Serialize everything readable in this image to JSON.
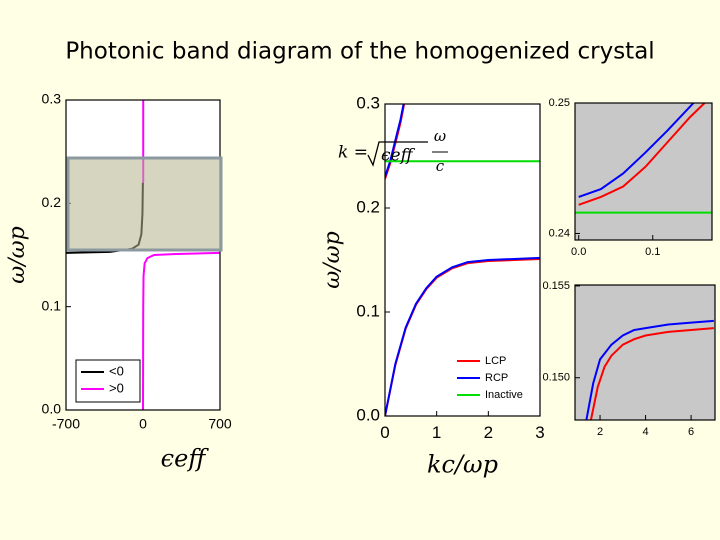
{
  "page_title": "Photonic band diagram of the homogenized crystal",
  "chart_data": [
    {
      "type": "line",
      "xlabel": "ϵeff",
      "ylabel": "ω/ωp",
      "xlim": [
        -700,
        700
      ],
      "xticks": [
        -700,
        0,
        700
      ],
      "ylim": [
        0,
        0.3
      ],
      "yticks": [
        {
          "value": 0,
          "label": "0.0"
        },
        0.1,
        0.2,
        0.3
      ],
      "legend": "lower left",
      "series": [
        {
          "name": "<0",
          "color": "#000000",
          "x": [
            -700,
            -300,
            -100,
            -40,
            -15,
            -5,
            -1
          ],
          "values": [
            0.152,
            0.153,
            0.156,
            0.16,
            0.17,
            0.19,
            0.22
          ]
        },
        {
          "name": ">0",
          "color": "#ff00ff",
          "x": [
            0,
            2,
            5,
            15,
            40,
            100,
            300,
            700,
            null,
            2,
            2
          ],
          "values": [
            0,
            0.1,
            0.13,
            0.142,
            0.147,
            0.15,
            0.151,
            0.152,
            null,
            0.22,
            0.3
          ]
        }
      ]
    },
    {
      "type": "line",
      "xlabel": "kc/ωp",
      "ylabel": "ω/ωp",
      "xlim": [
        0,
        3
      ],
      "xticks": [
        0,
        1,
        2,
        3
      ],
      "ylim": [
        0,
        0.3
      ],
      "yticks": [
        {
          "value": 0,
          "label": "0.0"
        },
        0.1,
        0.2,
        0.3
      ],
      "legend": "lower right",
      "annotation": {
        "lhs": "k =",
        "radicand": "ϵeff",
        "numerator": "ω",
        "denominator": "c"
      },
      "series": [
        {
          "name": "LCP",
          "color": "#ff0000",
          "x": [
            0,
            0.2,
            0.4,
            0.6,
            0.8,
            1,
            1.3,
            1.6,
            2,
            2.5,
            3,
            null,
            0,
            0.1,
            0.2,
            0.3,
            0.37
          ],
          "values": [
            0,
            0.049,
            0.084,
            0.107,
            0.122,
            0.133,
            0.142,
            0.147,
            0.149,
            0.15,
            0.151,
            null,
            0.228,
            0.243,
            0.262,
            0.282,
            0.3
          ]
        },
        {
          "name": "RCP",
          "color": "#0000ff",
          "x": [
            0,
            0.2,
            0.4,
            0.6,
            0.8,
            1,
            1.3,
            1.6,
            2,
            2.5,
            3,
            null,
            0,
            0.1,
            0.2,
            0.3,
            0.36
          ],
          "values": [
            0,
            0.05,
            0.085,
            0.108,
            0.123,
            0.134,
            0.143,
            0.148,
            0.15,
            0.151,
            0.152,
            null,
            0.23,
            0.245,
            0.265,
            0.285,
            0.3
          ]
        },
        {
          "name": "Inactive",
          "color": "#00dd00",
          "x": [
            0,
            3
          ],
          "values": [
            0.245,
            0.245
          ]
        }
      ]
    },
    {
      "type": "line",
      "xlim": [
        -0.005,
        0.18
      ],
      "xticks": [
        {
          "value": 0,
          "label": "0.0"
        },
        0.1
      ],
      "ylim": [
        0.2395,
        0.25
      ],
      "yticks": [
        0.24,
        0.25
      ],
      "series": [
        {
          "color": "#ff0000",
          "x": [
            0,
            0.03,
            0.06,
            0.09,
            0.12,
            0.15,
            0.17
          ],
          "values": [
            0.2422,
            0.2428,
            0.2436,
            0.2451,
            0.247,
            0.2489,
            0.25
          ]
        },
        {
          "color": "#0000ff",
          "x": [
            0,
            0.03,
            0.06,
            0.09,
            0.12,
            0.155
          ],
          "values": [
            0.2428,
            0.2434,
            0.2446,
            0.2462,
            0.2479,
            0.25
          ]
        },
        {
          "color": "#00dd00",
          "x": [
            -0.005,
            0.18
          ],
          "values": [
            0.2416,
            0.2416
          ]
        }
      ]
    },
    {
      "type": "line",
      "xlim": [
        0.9,
        7.05
      ],
      "xticks": [
        2,
        4,
        6
      ],
      "ylim": [
        0.1477,
        0.15505
      ],
      "yticks": [
        {
          "value": 0.15,
          "label": "0.150"
        },
        0.155
      ],
      "series": [
        {
          "color": "#ff0000",
          "x": [
            1.6,
            1.9,
            2.2,
            2.5,
            3,
            3.5,
            4,
            5,
            6,
            7
          ],
          "values": [
            0.1477,
            0.1495,
            0.1506,
            0.1512,
            0.1518,
            0.1521,
            0.1523,
            0.1525,
            0.1526,
            0.1527
          ]
        },
        {
          "color": "#0000ff",
          "x": [
            1.4,
            1.7,
            2,
            2.5,
            3,
            3.5,
            4,
            5,
            6,
            7
          ],
          "values": [
            0.1477,
            0.1497,
            0.151,
            0.1518,
            0.1523,
            0.1526,
            0.1527,
            0.1529,
            0.153,
            0.1531
          ]
        }
      ]
    }
  ]
}
